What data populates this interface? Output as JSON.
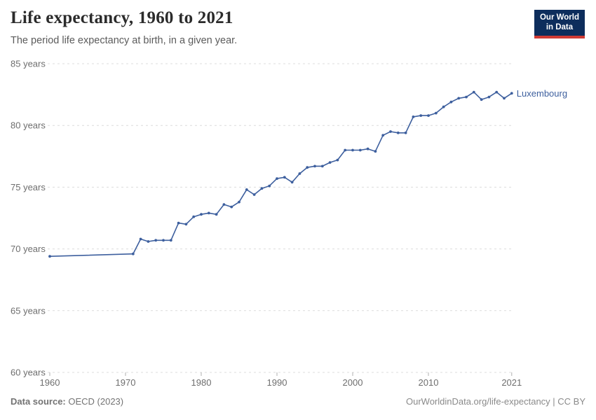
{
  "header": {
    "title": "Life expectancy, 1960 to 2021",
    "subtitle": "The period life expectancy at birth, in a given year.",
    "logo": {
      "line1": "Our World",
      "line2": "in Data"
    }
  },
  "footer": {
    "source_label": "Data source:",
    "source_value": " OECD (2023)",
    "credit": "OurWorldinData.org/life-expectancy | CC BY"
  },
  "colors": {
    "series_blue": "#3d5f9e",
    "gridline": "#dcdcdc",
    "tick": "#b0b0b0",
    "axis_text": "#6e6e6e",
    "logo_navy": "#0d2d5c",
    "logo_red": "#cf3a34"
  },
  "chart_data": {
    "type": "line",
    "title": "Life expectancy, 1960 to 2021",
    "xlabel": "",
    "ylabel": "",
    "xlim": [
      1960,
      2021
    ],
    "ylim": [
      60,
      85
    ],
    "grid": true,
    "legend": "inline-label-right",
    "x_ticks": [
      1960,
      1970,
      1980,
      1990,
      2000,
      2010,
      2021
    ],
    "y_ticks": [
      60,
      65,
      70,
      75,
      80,
      85
    ],
    "y_tick_suffix": " years",
    "series": [
      {
        "name": "Luxembourg",
        "color": "#3d5f9e",
        "points": [
          [
            1960,
            69.4
          ],
          [
            1971,
            69.6
          ],
          [
            1972,
            70.8
          ],
          [
            1973,
            70.6
          ],
          [
            1974,
            70.7
          ],
          [
            1975,
            70.7
          ],
          [
            1976,
            70.7
          ],
          [
            1977,
            72.1
          ],
          [
            1978,
            72.0
          ],
          [
            1979,
            72.6
          ],
          [
            1980,
            72.8
          ],
          [
            1981,
            72.9
          ],
          [
            1982,
            72.8
          ],
          [
            1983,
            73.6
          ],
          [
            1984,
            73.4
          ],
          [
            1985,
            73.8
          ],
          [
            1986,
            74.8
          ],
          [
            1987,
            74.4
          ],
          [
            1988,
            74.9
          ],
          [
            1989,
            75.1
          ],
          [
            1990,
            75.7
          ],
          [
            1991,
            75.8
          ],
          [
            1992,
            75.4
          ],
          [
            1993,
            76.1
          ],
          [
            1994,
            76.6
          ],
          [
            1995,
            76.7
          ],
          [
            1996,
            76.7
          ],
          [
            1997,
            77.0
          ],
          [
            1998,
            77.2
          ],
          [
            1999,
            78.0
          ],
          [
            2000,
            78.0
          ],
          [
            2001,
            78.0
          ],
          [
            2002,
            78.1
          ],
          [
            2003,
            77.9
          ],
          [
            2004,
            79.2
          ],
          [
            2005,
            79.5
          ],
          [
            2006,
            79.4
          ],
          [
            2007,
            79.4
          ],
          [
            2008,
            80.7
          ],
          [
            2009,
            80.8
          ],
          [
            2010,
            80.8
          ],
          [
            2011,
            81.0
          ],
          [
            2012,
            81.5
          ],
          [
            2013,
            81.9
          ],
          [
            2014,
            82.2
          ],
          [
            2015,
            82.3
          ],
          [
            2016,
            82.7
          ],
          [
            2017,
            82.1
          ],
          [
            2018,
            82.3
          ],
          [
            2019,
            82.7
          ],
          [
            2020,
            82.2
          ],
          [
            2021,
            82.6
          ]
        ]
      }
    ]
  }
}
